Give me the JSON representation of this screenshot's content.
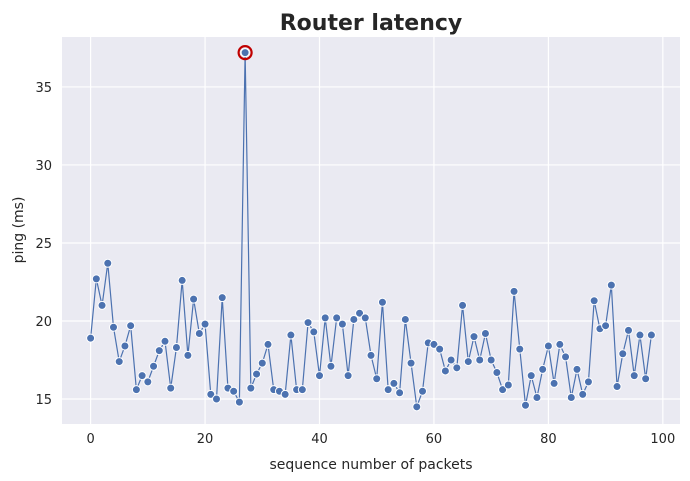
{
  "chart_data": {
    "type": "line",
    "title": "Router latency",
    "xlabel": "sequence number of packets",
    "ylabel": "ping (ms)",
    "xlim": [
      -5,
      103
    ],
    "ylim": [
      13.4,
      38.2
    ],
    "xticks": [
      0,
      20,
      40,
      60,
      80,
      100
    ],
    "yticks": [
      15,
      20,
      25,
      30,
      35
    ],
    "grid": true,
    "line_color": "#4C72B0",
    "highlight_color": "#C00000",
    "highlight_index": 27,
    "series": [
      {
        "values": [
          18.9,
          22.7,
          21.0,
          23.7,
          19.6,
          17.4,
          18.4,
          19.7,
          15.6,
          16.5,
          16.1,
          17.1,
          18.1,
          18.7,
          15.7,
          18.3,
          22.6,
          17.8,
          21.4,
          19.2,
          19.8,
          15.3,
          15.0,
          21.5,
          15.7,
          15.5,
          14.8,
          37.2,
          15.7,
          16.6,
          17.3,
          18.5,
          15.6,
          15.5,
          15.3,
          19.1,
          15.6,
          15.6,
          19.9,
          19.3,
          16.5,
          20.2,
          17.1,
          20.2,
          19.8,
          16.5,
          20.1,
          20.5,
          20.2,
          17.8,
          16.3,
          21.2,
          15.6,
          16.0,
          15.4,
          20.1,
          17.3,
          14.5,
          15.5,
          18.6,
          18.5,
          18.2,
          16.8,
          17.5,
          17.0,
          21.0,
          17.4,
          19.0,
          17.5,
          19.2,
          17.5,
          16.7,
          15.6,
          15.9,
          21.9,
          18.2,
          14.6,
          16.5,
          15.1,
          16.9,
          18.4,
          16.0,
          18.5,
          17.7,
          15.1,
          16.9,
          15.3,
          16.1,
          21.3,
          19.5,
          19.7,
          22.3,
          15.8,
          17.9,
          19.4,
          16.5,
          19.1,
          16.3,
          19.1
        ]
      }
    ]
  }
}
